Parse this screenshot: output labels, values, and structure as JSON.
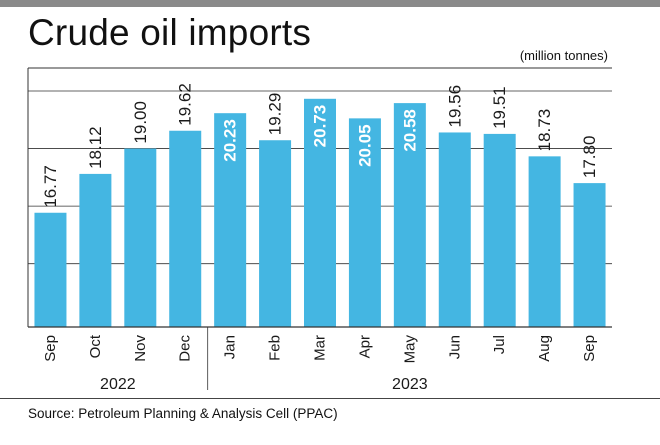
{
  "chart_data": {
    "type": "bar",
    "title": "Crude oil imports",
    "unit_label": "(million tonnes)",
    "categories": [
      "Sep",
      "Oct",
      "Nov",
      "Dec",
      "Jan",
      "Feb",
      "Mar",
      "Apr",
      "May",
      "Jun",
      "Jul",
      "Aug",
      "Sep"
    ],
    "values": [
      16.77,
      18.12,
      19.0,
      19.62,
      20.23,
      19.29,
      20.73,
      20.05,
      20.58,
      19.56,
      19.51,
      18.73,
      17.8
    ],
    "value_labels": [
      "16.77",
      "18.12",
      "19.00",
      "19.62",
      "20.23",
      "19.29",
      "20.73",
      "20.05",
      "20.58",
      "19.56",
      "19.51",
      "18.73",
      "17.80"
    ],
    "label_inside": [
      false,
      false,
      false,
      false,
      true,
      false,
      true,
      true,
      true,
      false,
      false,
      false,
      false
    ],
    "year_groups": [
      {
        "label": "2022",
        "start": 0,
        "end": 3
      },
      {
        "label": "2023",
        "start": 4,
        "end": 12
      }
    ],
    "ylim": [
      12.8,
      21.8
    ],
    "grid": true,
    "bar_color": "#44b6e2"
  },
  "source": "Source: Petroleum Planning & Analysis Cell (PPAC)"
}
